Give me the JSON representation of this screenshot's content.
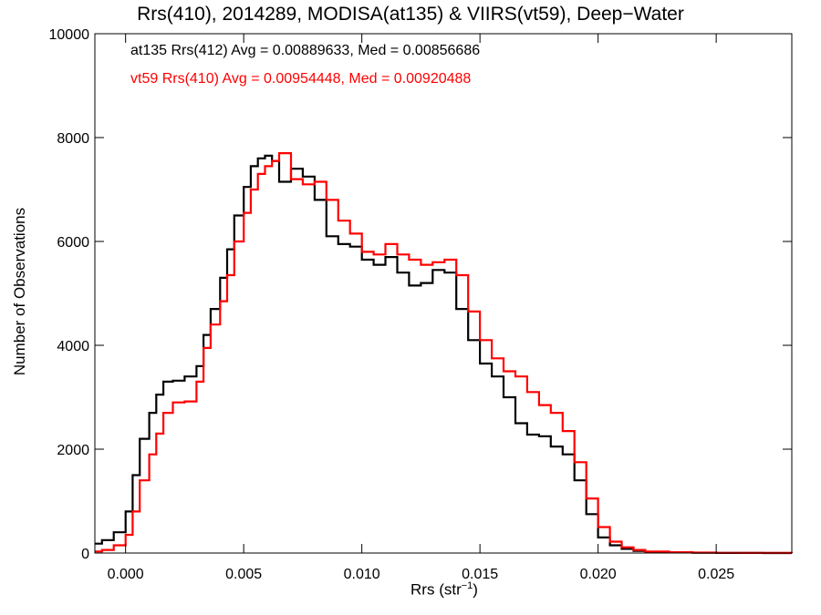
{
  "chart_data": {
    "type": "histogram-step",
    "title": "Rrs(410), 2014289, MODISA(at135) & VIIRS(vt59), Deep−Water",
    "xlabel_main": "Rrs (str",
    "xlabel_sup": "−1",
    "xlabel_close": ")",
    "ylabel": "Number of Observations",
    "xlim": [
      -0.0013,
      0.0282
    ],
    "ylim": [
      0,
      10000
    ],
    "x_ticks": [
      0.0,
      0.005,
      0.01,
      0.015,
      0.02,
      0.025
    ],
    "x_tick_labels": [
      "0.000",
      "0.005",
      "0.010",
      "0.015",
      "0.020",
      "0.025"
    ],
    "y_ticks": [
      0,
      2000,
      4000,
      6000,
      8000,
      10000
    ],
    "y_tick_labels": [
      "0",
      "2000",
      "4000",
      "6000",
      "8000",
      "10000"
    ],
    "grid": false,
    "annotations": [
      "at135 Rrs(412) Avg = 0.00889633, Med = 0.00856686",
      "vt59 Rrs(410) Avg = 0.00954448, Med = 0.00920488"
    ],
    "series": [
      {
        "color": "#000000",
        "x": [
          -0.0013,
          -0.001,
          -0.0005,
          0.0,
          0.0003,
          0.0006,
          0.001,
          0.0013,
          0.0016,
          0.002,
          0.0025,
          0.003,
          0.0033,
          0.0036,
          0.004,
          0.0043,
          0.0046,
          0.005,
          0.0053,
          0.0056,
          0.0059,
          0.0062,
          0.0065,
          0.007,
          0.0075,
          0.008,
          0.0085,
          0.009,
          0.0095,
          0.01,
          0.0105,
          0.011,
          0.0115,
          0.012,
          0.0125,
          0.013,
          0.0135,
          0.014,
          0.0145,
          0.015,
          0.0155,
          0.016,
          0.0165,
          0.017,
          0.0175,
          0.018,
          0.0185,
          0.019,
          0.0195,
          0.02,
          0.0205,
          0.021,
          0.0215,
          0.022,
          0.023,
          0.024,
          0.025,
          0.026,
          0.027,
          0.0282
        ],
        "values": [
          180,
          250,
          400,
          800,
          1500,
          2200,
          2700,
          3050,
          3300,
          3320,
          3400,
          3600,
          4200,
          4700,
          5300,
          5850,
          6500,
          7050,
          7450,
          7600,
          7650,
          7550,
          7150,
          7400,
          7250,
          6800,
          6100,
          5950,
          5900,
          5650,
          5550,
          5700,
          5400,
          5150,
          5200,
          5450,
          5400,
          4700,
          4100,
          3650,
          3400,
          3000,
          2500,
          2280,
          2250,
          2050,
          1900,
          1400,
          750,
          300,
          150,
          80,
          40,
          20,
          10,
          5,
          2,
          1,
          0,
          0
        ]
      },
      {
        "color": "#ff0000",
        "x": [
          -0.0013,
          -0.001,
          -0.0005,
          0.0,
          0.0003,
          0.0006,
          0.001,
          0.0013,
          0.0016,
          0.002,
          0.0025,
          0.003,
          0.0033,
          0.0036,
          0.004,
          0.0043,
          0.0046,
          0.005,
          0.0053,
          0.0056,
          0.0059,
          0.0062,
          0.0065,
          0.007,
          0.0075,
          0.008,
          0.0085,
          0.009,
          0.0095,
          0.01,
          0.0105,
          0.011,
          0.0115,
          0.012,
          0.0125,
          0.013,
          0.0135,
          0.014,
          0.0145,
          0.015,
          0.0155,
          0.016,
          0.0165,
          0.017,
          0.0175,
          0.018,
          0.0185,
          0.019,
          0.0195,
          0.02,
          0.0205,
          0.021,
          0.0215,
          0.022,
          0.023,
          0.024,
          0.025,
          0.026,
          0.027,
          0.0282
        ],
        "values": [
          30,
          60,
          150,
          350,
          800,
          1400,
          1900,
          2300,
          2700,
          2900,
          2920,
          3300,
          3950,
          4400,
          4850,
          5350,
          6000,
          6550,
          7000,
          7300,
          7450,
          7550,
          7700,
          7200,
          7100,
          7150,
          6800,
          6400,
          6150,
          5800,
          5750,
          5950,
          5750,
          5650,
          5550,
          5600,
          5650,
          5350,
          4650,
          4100,
          3750,
          3500,
          3400,
          3100,
          2850,
          2700,
          2350,
          1750,
          1050,
          500,
          220,
          110,
          60,
          30,
          15,
          8,
          4,
          2,
          1,
          0
        ]
      }
    ]
  }
}
